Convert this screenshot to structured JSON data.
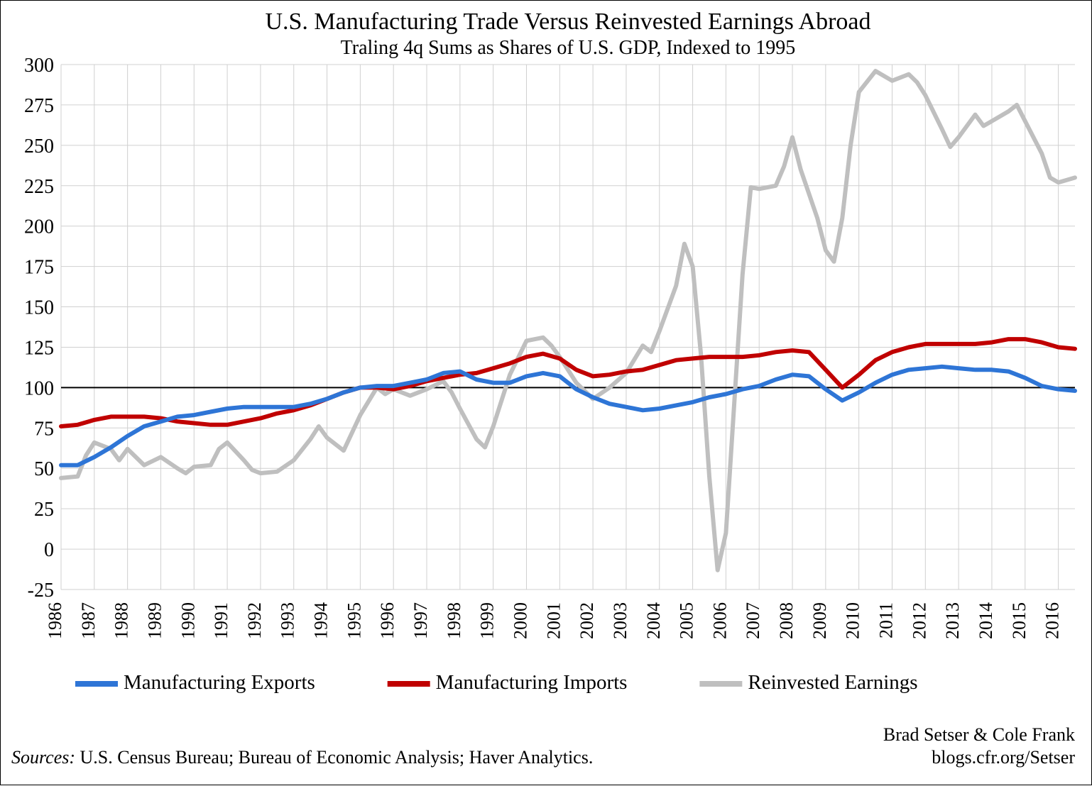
{
  "chart": {
    "type": "line",
    "title": "U.S. Manufacturing Trade Versus Reinvested Earnings Abroad",
    "subtitle": "Traling 4q Sums as Shares of U.S. GDP, Indexed to 1995",
    "title_fontsize": 34,
    "subtitle_fontsize": 28,
    "background_color": "#ffffff",
    "grid_color": "#d0d0d0",
    "axis_text_color": "#000000",
    "line_width": 6,
    "plot": {
      "x_start_year": 1986,
      "x_end_year": 2017,
      "x_tick_labels": [
        "1986",
        "1987",
        "1988",
        "1989",
        "1990",
        "1991",
        "1992",
        "1993",
        "1994",
        "1995",
        "1996",
        "1997",
        "1998",
        "1999",
        "2000",
        "2001",
        "2002",
        "2003",
        "2004",
        "2005",
        "2006",
        "2007",
        "2008",
        "2009",
        "2010",
        "2011",
        "2012",
        "2013",
        "2014",
        "2015",
        "2016"
      ],
      "ylim": [
        -25,
        300
      ],
      "y_ticks": [
        -25,
        0,
        25,
        50,
        75,
        100,
        125,
        150,
        175,
        200,
        225,
        250,
        275,
        300
      ],
      "y_tick_fontsize": 28,
      "x_tick_fontsize": 26,
      "baseline_value": 100
    },
    "series": [
      {
        "name": "Manufacturing Exports",
        "color": "#2e75d6",
        "data": [
          [
            1986.5,
            52
          ],
          [
            1987,
            52
          ],
          [
            1987.5,
            57
          ],
          [
            1988,
            63
          ],
          [
            1988.5,
            70
          ],
          [
            1989,
            76
          ],
          [
            1989.5,
            79
          ],
          [
            1990,
            82
          ],
          [
            1990.5,
            83
          ],
          [
            1991,
            85
          ],
          [
            1991.5,
            87
          ],
          [
            1992,
            88
          ],
          [
            1992.5,
            88
          ],
          [
            1993,
            88
          ],
          [
            1993.5,
            88
          ],
          [
            1994,
            90
          ],
          [
            1994.5,
            93
          ],
          [
            1995,
            97
          ],
          [
            1995.5,
            100
          ],
          [
            1996,
            101
          ],
          [
            1996.5,
            101
          ],
          [
            1997,
            103
          ],
          [
            1997.5,
            105
          ],
          [
            1998,
            109
          ],
          [
            1998.5,
            110
          ],
          [
            1999,
            105
          ],
          [
            1999.5,
            103
          ],
          [
            2000,
            103
          ],
          [
            2000.5,
            107
          ],
          [
            2001,
            109
          ],
          [
            2001.5,
            107
          ],
          [
            2002,
            99
          ],
          [
            2002.5,
            94
          ],
          [
            2003,
            90
          ],
          [
            2003.5,
            88
          ],
          [
            2004,
            86
          ],
          [
            2004.5,
            87
          ],
          [
            2005,
            89
          ],
          [
            2005.5,
            91
          ],
          [
            2006,
            94
          ],
          [
            2006.5,
            96
          ],
          [
            2007,
            99
          ],
          [
            2007.5,
            101
          ],
          [
            2008,
            105
          ],
          [
            2008.5,
            108
          ],
          [
            2009,
            107
          ],
          [
            2009.5,
            99
          ],
          [
            2010,
            92
          ],
          [
            2010.5,
            97
          ],
          [
            2011,
            103
          ],
          [
            2011.5,
            108
          ],
          [
            2012,
            111
          ],
          [
            2012.5,
            112
          ],
          [
            2013,
            113
          ],
          [
            2013.5,
            112
          ],
          [
            2014,
            111
          ],
          [
            2014.5,
            111
          ],
          [
            2015,
            110
          ],
          [
            2015.5,
            106
          ],
          [
            2016,
            101
          ],
          [
            2016.5,
            99
          ],
          [
            2017,
            98
          ]
        ]
      },
      {
        "name": "Manufacturing Imports",
        "color": "#c00000",
        "data": [
          [
            1986.5,
            76
          ],
          [
            1987,
            77
          ],
          [
            1987.5,
            80
          ],
          [
            1988,
            82
          ],
          [
            1988.5,
            82
          ],
          [
            1989,
            82
          ],
          [
            1989.5,
            81
          ],
          [
            1990,
            79
          ],
          [
            1990.5,
            78
          ],
          [
            1991,
            77
          ],
          [
            1991.5,
            77
          ],
          [
            1992,
            79
          ],
          [
            1992.5,
            81
          ],
          [
            1993,
            84
          ],
          [
            1993.5,
            86
          ],
          [
            1994,
            89
          ],
          [
            1994.5,
            93
          ],
          [
            1995,
            97
          ],
          [
            1995.5,
            100
          ],
          [
            1996,
            100
          ],
          [
            1996.5,
            99
          ],
          [
            1997,
            101
          ],
          [
            1997.5,
            104
          ],
          [
            1998,
            106
          ],
          [
            1998.5,
            108
          ],
          [
            1999,
            109
          ],
          [
            1999.5,
            112
          ],
          [
            2000,
            115
          ],
          [
            2000.5,
            119
          ],
          [
            2001,
            121
          ],
          [
            2001.5,
            118
          ],
          [
            2002,
            111
          ],
          [
            2002.5,
            107
          ],
          [
            2003,
            108
          ],
          [
            2003.5,
            110
          ],
          [
            2004,
            111
          ],
          [
            2004.5,
            114
          ],
          [
            2005,
            117
          ],
          [
            2005.5,
            118
          ],
          [
            2006,
            119
          ],
          [
            2006.5,
            119
          ],
          [
            2007,
            119
          ],
          [
            2007.5,
            120
          ],
          [
            2008,
            122
          ],
          [
            2008.5,
            123
          ],
          [
            2009,
            122
          ],
          [
            2009.5,
            111
          ],
          [
            2010,
            100
          ],
          [
            2010.5,
            108
          ],
          [
            2011,
            117
          ],
          [
            2011.5,
            122
          ],
          [
            2012,
            125
          ],
          [
            2012.5,
            127
          ],
          [
            2013,
            127
          ],
          [
            2013.5,
            127
          ],
          [
            2014,
            127
          ],
          [
            2014.5,
            128
          ],
          [
            2015,
            130
          ],
          [
            2015.5,
            130
          ],
          [
            2016,
            128
          ],
          [
            2016.5,
            125
          ],
          [
            2017,
            124
          ]
        ]
      },
      {
        "name": "Reinvested Earnings",
        "color": "#bfbfbf",
        "data": [
          [
            1986.5,
            44
          ],
          [
            1987,
            45
          ],
          [
            1987.25,
            58
          ],
          [
            1987.5,
            66
          ],
          [
            1988,
            62
          ],
          [
            1988.25,
            55
          ],
          [
            1988.5,
            62
          ],
          [
            1989,
            52
          ],
          [
            1989.5,
            57
          ],
          [
            1990,
            50
          ],
          [
            1990.25,
            47
          ],
          [
            1990.5,
            51
          ],
          [
            1991,
            52
          ],
          [
            1991.25,
            62
          ],
          [
            1991.5,
            66
          ],
          [
            1992,
            55
          ],
          [
            1992.25,
            49
          ],
          [
            1992.5,
            47
          ],
          [
            1993,
            48
          ],
          [
            1993.5,
            55
          ],
          [
            1994,
            68
          ],
          [
            1994.25,
            76
          ],
          [
            1994.5,
            69
          ],
          [
            1995,
            61
          ],
          [
            1995.5,
            83
          ],
          [
            1996,
            100
          ],
          [
            1996.25,
            96
          ],
          [
            1996.5,
            99
          ],
          [
            1997,
            95
          ],
          [
            1997.5,
            99
          ],
          [
            1998,
            104
          ],
          [
            1998.25,
            97
          ],
          [
            1998.5,
            87
          ],
          [
            1999,
            68
          ],
          [
            1999.25,
            63
          ],
          [
            1999.5,
            76
          ],
          [
            2000,
            108
          ],
          [
            2000.5,
            129
          ],
          [
            2001,
            131
          ],
          [
            2001.25,
            126
          ],
          [
            2001.5,
            119
          ],
          [
            2002,
            103
          ],
          [
            2002.5,
            93
          ],
          [
            2003,
            100
          ],
          [
            2003.5,
            109
          ],
          [
            2004,
            126
          ],
          [
            2004.25,
            122
          ],
          [
            2004.5,
            135
          ],
          [
            2005,
            163
          ],
          [
            2005.25,
            189
          ],
          [
            2005.5,
            175
          ],
          [
            2005.75,
            120
          ],
          [
            2006,
            45
          ],
          [
            2006.25,
            -13
          ],
          [
            2006.5,
            10
          ],
          [
            2006.75,
            90
          ],
          [
            2007,
            170
          ],
          [
            2007.25,
            224
          ],
          [
            2007.5,
            223
          ],
          [
            2008,
            225
          ],
          [
            2008.25,
            237
          ],
          [
            2008.5,
            255
          ],
          [
            2008.75,
            235
          ],
          [
            2009,
            220
          ],
          [
            2009.25,
            205
          ],
          [
            2009.5,
            185
          ],
          [
            2009.75,
            178
          ],
          [
            2010,
            205
          ],
          [
            2010.25,
            250
          ],
          [
            2010.5,
            283
          ],
          [
            2011,
            296
          ],
          [
            2011.5,
            290
          ],
          [
            2012,
            294
          ],
          [
            2012.25,
            289
          ],
          [
            2012.5,
            281
          ],
          [
            2013,
            260
          ],
          [
            2013.25,
            249
          ],
          [
            2013.5,
            255
          ],
          [
            2014,
            269
          ],
          [
            2014.25,
            262
          ],
          [
            2014.5,
            265
          ],
          [
            2015,
            271
          ],
          [
            2015.25,
            275
          ],
          [
            2015.5,
            265
          ],
          [
            2016,
            245
          ],
          [
            2016.25,
            230
          ],
          [
            2016.5,
            227
          ],
          [
            2017,
            230
          ]
        ]
      }
    ],
    "legend": {
      "fontsize": 29,
      "swatch_width": 60,
      "swatch_height": 6
    },
    "footer": {
      "sources_label": "Sources:",
      "sources_text": " U.S. Census Bureau; Bureau of Economic Analysis; Haver Analytics.",
      "attribution_line1": "Brad Setser & Cole Frank",
      "attribution_line2": "blogs.cfr.org/Setser",
      "fontsize": 26
    }
  }
}
